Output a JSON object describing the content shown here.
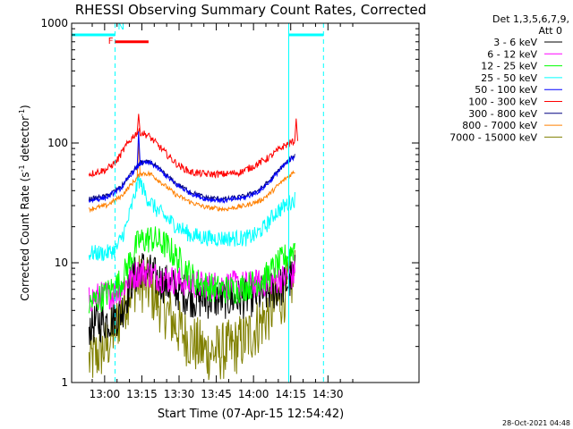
{
  "chart_data": {
    "type": "line",
    "title": "RHESSI Observing Summary Count Rates, Corrected",
    "xlabel": "Start Time (07-Apr-15 12:54:42)",
    "ylabel_main": "Corrected Count Rate (s",
    "ylabel_sup1": "-1",
    "ylabel_mid": " detector",
    "ylabel_sup2": "-1",
    "ylabel_end": ")",
    "yscale": "log",
    "ylim": [
      1,
      1000
    ],
    "xlim_minutes": [
      -8,
      132
    ],
    "x_reference": "12:54:42",
    "y_ticks": [
      {
        "value": 1,
        "label": "1"
      },
      {
        "value": 10,
        "label": "10"
      },
      {
        "value": 100,
        "label": "100"
      },
      {
        "value": 1000,
        "label": "1000"
      }
    ],
    "x_ticks": [
      {
        "t": 5.3,
        "label": "13:00"
      },
      {
        "t": 20.3,
        "label": "13:15"
      },
      {
        "t": 35.3,
        "label": "13:30"
      },
      {
        "t": 50.3,
        "label": "13:45"
      },
      {
        "t": 65.3,
        "label": "14:00"
      },
      {
        "t": 80.3,
        "label": "14:15"
      },
      {
        "t": 95.3,
        "label": "14:30"
      }
    ],
    "legend_title_1": "Det 1,3,5,6,7,9,",
    "legend_title_2": "Att 0",
    "series": [
      {
        "name": "3 - 6 keV",
        "color": "#000000",
        "noise": 0.35,
        "points": [
          [
            -1,
            3
          ],
          [
            8,
            3.4
          ],
          [
            12,
            3.8
          ],
          [
            16,
            7
          ],
          [
            20,
            9
          ],
          [
            24,
            8
          ],
          [
            28,
            7
          ],
          [
            34,
            6
          ],
          [
            42,
            5
          ],
          [
            50,
            5
          ],
          [
            60,
            5
          ],
          [
            70,
            5.5
          ],
          [
            78,
            6.5
          ],
          [
            82,
            8
          ]
        ]
      },
      {
        "name": "6 - 12 keV",
        "color": "#ff00ff",
        "noise": 0.25,
        "points": [
          [
            -1,
            5
          ],
          [
            8,
            5.5
          ],
          [
            12,
            6
          ],
          [
            16,
            7.5
          ],
          [
            20,
            8.5
          ],
          [
            24,
            8
          ],
          [
            28,
            7.5
          ],
          [
            36,
            7
          ],
          [
            44,
            6.5
          ],
          [
            54,
            6.5
          ],
          [
            64,
            6.5
          ],
          [
            72,
            7
          ],
          [
            78,
            7.5
          ],
          [
            82,
            8
          ]
        ]
      },
      {
        "name": "12 - 25 keV",
        "color": "#00ff00",
        "noise": 0.25,
        "points": [
          [
            -1,
            4.5
          ],
          [
            6,
            5.5
          ],
          [
            12,
            7
          ],
          [
            16,
            11
          ],
          [
            19,
            15
          ],
          [
            24,
            16
          ],
          [
            30,
            14
          ],
          [
            36,
            10
          ],
          [
            42,
            7
          ],
          [
            50,
            6
          ],
          [
            58,
            6
          ],
          [
            64,
            6.5
          ],
          [
            70,
            7.5
          ],
          [
            76,
            10
          ],
          [
            80,
            12
          ],
          [
            82,
            14
          ]
        ]
      },
      {
        "name": "25 - 50 keV",
        "color": "#00ffff",
        "noise": 0.14,
        "points": [
          [
            -1,
            12
          ],
          [
            6,
            12
          ],
          [
            10,
            13
          ],
          [
            14,
            20
          ],
          [
            17,
            34
          ],
          [
            19,
            50
          ],
          [
            22,
            36
          ],
          [
            26,
            28
          ],
          [
            32,
            22
          ],
          [
            40,
            17
          ],
          [
            48,
            16
          ],
          [
            56,
            16
          ],
          [
            62,
            16
          ],
          [
            66,
            17
          ],
          [
            70,
            20
          ],
          [
            74,
            26
          ],
          [
            78,
            30
          ],
          [
            82,
            34
          ]
        ]
      },
      {
        "name": "50 - 100 keV",
        "color": "#0000ff",
        "noise": 0.04,
        "points": [
          [
            -1,
            33
          ],
          [
            6,
            35
          ],
          [
            12,
            42
          ],
          [
            16,
            55
          ],
          [
            20,
            68
          ],
          [
            24,
            68
          ],
          [
            28,
            58
          ],
          [
            34,
            45
          ],
          [
            40,
            38
          ],
          [
            46,
            34
          ],
          [
            54,
            33
          ],
          [
            62,
            35
          ],
          [
            68,
            40
          ],
          [
            72,
            48
          ],
          [
            76,
            60
          ],
          [
            80,
            72
          ],
          [
            82,
            78
          ]
        ]
      },
      {
        "name": "100 - 300 keV",
        "color": "#ff0000",
        "noise": 0.06,
        "points": [
          [
            -1,
            55
          ],
          [
            6,
            60
          ],
          [
            10,
            70
          ],
          [
            14,
            95
          ],
          [
            17,
            115
          ],
          [
            19,
            125
          ],
          [
            23,
            115
          ],
          [
            27,
            95
          ],
          [
            31,
            78
          ],
          [
            35,
            65
          ],
          [
            40,
            57
          ],
          [
            46,
            55
          ],
          [
            54,
            55
          ],
          [
            60,
            57
          ],
          [
            66,
            65
          ],
          [
            72,
            77
          ],
          [
            77,
            93
          ],
          [
            80,
            100
          ],
          [
            82,
            104
          ]
        ]
      },
      {
        "name": "300 - 800 keV",
        "color": "#000080",
        "noise": 0.04,
        "points": [
          [
            -1,
            34
          ],
          [
            6,
            36
          ],
          [
            12,
            43
          ],
          [
            16,
            56
          ],
          [
            20,
            69
          ],
          [
            24,
            69
          ],
          [
            28,
            59
          ],
          [
            34,
            46
          ],
          [
            40,
            39
          ],
          [
            46,
            35
          ],
          [
            54,
            34
          ],
          [
            62,
            36
          ],
          [
            68,
            41
          ],
          [
            72,
            49
          ],
          [
            76,
            61
          ],
          [
            80,
            73
          ],
          [
            82,
            79
          ]
        ]
      },
      {
        "name": "800 - 7000 keV",
        "color": "#ff8000",
        "noise": 0.04,
        "points": [
          [
            -1,
            28
          ],
          [
            6,
            30
          ],
          [
            12,
            36
          ],
          [
            16,
            45
          ],
          [
            20,
            56
          ],
          [
            24,
            55
          ],
          [
            28,
            47
          ],
          [
            34,
            37
          ],
          [
            40,
            32
          ],
          [
            46,
            29
          ],
          [
            54,
            28
          ],
          [
            62,
            30
          ],
          [
            68,
            33
          ],
          [
            72,
            38
          ],
          [
            76,
            46
          ],
          [
            80,
            54
          ],
          [
            82,
            58
          ]
        ]
      },
      {
        "name": "7000 - 15000 keV",
        "color": "#808000",
        "noise": 0.5,
        "points": [
          [
            -1,
            1.5
          ],
          [
            6,
            2
          ],
          [
            10,
            3
          ],
          [
            14,
            5
          ],
          [
            18,
            7
          ],
          [
            22,
            6.5
          ],
          [
            26,
            5
          ],
          [
            30,
            4
          ],
          [
            34,
            3
          ],
          [
            40,
            2.2
          ],
          [
            46,
            1.8
          ],
          [
            52,
            1.8
          ],
          [
            58,
            2
          ],
          [
            64,
            2.5
          ],
          [
            70,
            3.5
          ],
          [
            76,
            5
          ],
          [
            80,
            6.5
          ],
          [
            82,
            8
          ]
        ]
      }
    ],
    "flare_spikes": [
      {
        "series": "100 - 300 keV",
        "t": 19,
        "value": 175
      },
      {
        "series": "50 - 100 keV",
        "t": 19,
        "value": 125
      },
      {
        "series": "800 - 7000 keV",
        "t": 19,
        "value": 100
      },
      {
        "series": "100 - 300 keV",
        "t": 82.5,
        "value": 160
      }
    ],
    "annotations": {
      "flag_F": "F",
      "flag_N": "N",
      "night_segments": [
        [
          -8,
          9.5
        ],
        [
          79.5,
          93.5
        ]
      ],
      "night_value": 800,
      "flare_bar": [
        9.5,
        23
      ],
      "flare_value": 700,
      "vertical_lines_solid": [
        -8,
        79.5
      ],
      "vertical_lines_dashed": [
        9.5,
        93.5
      ],
      "colors": {
        "night": "#00ffff",
        "flare": "#ff0000"
      }
    },
    "grid": false,
    "legend_position": "right"
  },
  "timestamp": "28-Oct-2021 04:48"
}
